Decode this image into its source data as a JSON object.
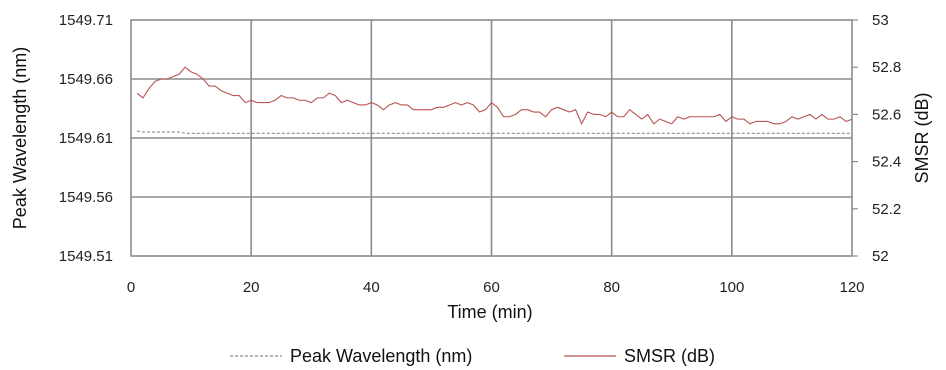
{
  "chart_data": {
    "type": "line",
    "title": "",
    "xlabel": "Time (min)",
    "ylabel_left": "Peak Wavelength (nm)",
    "ylabel_right": "SMSR (dB)",
    "xlim": [
      0,
      120
    ],
    "ylim_left": [
      1549.51,
      1549.71
    ],
    "ylim_right": [
      52,
      53
    ],
    "x_ticks": [
      "0",
      "20",
      "40",
      "60",
      "80",
      "100",
      "120"
    ],
    "y_left_ticks": [
      "1549.51",
      "1549.56",
      "1549.61",
      "1549.66",
      "1549.71"
    ],
    "y_right_ticks": [
      "52",
      "52.2",
      "52.4",
      "52.6",
      "52.8",
      "53"
    ],
    "grid": true,
    "legend_position": "bottom",
    "x": [
      1,
      2,
      3,
      4,
      5,
      6,
      7,
      8,
      9,
      10,
      11,
      12,
      13,
      14,
      15,
      16,
      17,
      18,
      19,
      20,
      21,
      22,
      23,
      24,
      25,
      26,
      27,
      28,
      29,
      30,
      31,
      32,
      33,
      34,
      35,
      36,
      37,
      38,
      39,
      40,
      41,
      42,
      43,
      44,
      45,
      46,
      47,
      48,
      49,
      50,
      51,
      52,
      53,
      54,
      55,
      56,
      57,
      58,
      59,
      60,
      61,
      62,
      63,
      64,
      65,
      66,
      67,
      68,
      69,
      70,
      71,
      72,
      73,
      74,
      75,
      76,
      77,
      78,
      79,
      80,
      81,
      82,
      83,
      84,
      85,
      86,
      87,
      88,
      89,
      90,
      91,
      92,
      93,
      94,
      95,
      96,
      97,
      98,
      99,
      100,
      101,
      102,
      103,
      104,
      105,
      106,
      107,
      108,
      109,
      110,
      111,
      112,
      113,
      114,
      115,
      116,
      117,
      118,
      119,
      120
    ],
    "series": [
      {
        "name": "Peak Wavelength (nm)",
        "axis": "left",
        "style": "dashed",
        "color": "#8a8a8a",
        "values": [
          1549.616,
          1549.615,
          1549.615,
          1549.615,
          1549.615,
          1549.615,
          1549.615,
          1549.615,
          1549.614,
          1549.614,
          1549.614,
          1549.614,
          1549.614,
          1549.614,
          1549.614,
          1549.614,
          1549.614,
          1549.614,
          1549.614,
          1549.614,
          1549.614,
          1549.614,
          1549.614,
          1549.614,
          1549.614,
          1549.614,
          1549.614,
          1549.614,
          1549.614,
          1549.614,
          1549.614,
          1549.614,
          1549.614,
          1549.614,
          1549.614,
          1549.614,
          1549.614,
          1549.614,
          1549.614,
          1549.614,
          1549.614,
          1549.614,
          1549.614,
          1549.614,
          1549.614,
          1549.614,
          1549.614,
          1549.614,
          1549.614,
          1549.614,
          1549.614,
          1549.614,
          1549.614,
          1549.614,
          1549.614,
          1549.614,
          1549.614,
          1549.614,
          1549.614,
          1549.614,
          1549.614,
          1549.614,
          1549.614,
          1549.614,
          1549.614,
          1549.614,
          1549.614,
          1549.614,
          1549.614,
          1549.614,
          1549.614,
          1549.614,
          1549.614,
          1549.614,
          1549.614,
          1549.614,
          1549.614,
          1549.614,
          1549.614,
          1549.614,
          1549.614,
          1549.614,
          1549.614,
          1549.614,
          1549.614,
          1549.614,
          1549.614,
          1549.614,
          1549.614,
          1549.614,
          1549.614,
          1549.614,
          1549.614,
          1549.614,
          1549.614,
          1549.614,
          1549.614,
          1549.614,
          1549.614,
          1549.614,
          1549.614,
          1549.614,
          1549.614,
          1549.614,
          1549.614,
          1549.614,
          1549.614,
          1549.614,
          1549.614,
          1549.614,
          1549.614,
          1549.614,
          1549.614,
          1549.614,
          1549.614,
          1549.614,
          1549.614,
          1549.614,
          1549.614,
          1549.614
        ]
      },
      {
        "name": "SMSR (dB)",
        "axis": "right",
        "style": "solid",
        "color": "#b85450",
        "values": [
          52.69,
          52.67,
          52.71,
          52.74,
          52.75,
          52.75,
          52.76,
          52.77,
          52.8,
          52.78,
          52.77,
          52.75,
          52.72,
          52.72,
          52.7,
          52.69,
          52.68,
          52.68,
          52.65,
          52.66,
          52.65,
          52.65,
          52.65,
          52.66,
          52.68,
          52.67,
          52.67,
          52.66,
          52.66,
          52.65,
          52.67,
          52.67,
          52.69,
          52.68,
          52.65,
          52.66,
          52.65,
          52.64,
          52.64,
          52.65,
          52.64,
          52.62,
          52.64,
          52.65,
          52.64,
          52.64,
          52.62,
          52.62,
          52.62,
          52.62,
          52.63,
          52.63,
          52.64,
          52.65,
          52.64,
          52.65,
          52.64,
          52.61,
          52.62,
          52.65,
          52.63,
          52.59,
          52.59,
          52.6,
          52.62,
          52.62,
          52.61,
          52.61,
          52.59,
          52.62,
          52.63,
          52.62,
          52.61,
          52.62,
          52.56,
          52.61,
          52.6,
          52.6,
          52.59,
          52.61,
          52.59,
          52.59,
          52.62,
          52.6,
          52.58,
          52.6,
          52.56,
          52.58,
          52.57,
          52.56,
          52.59,
          52.58,
          52.59,
          52.59,
          52.59,
          52.59,
          52.59,
          52.6,
          52.57,
          52.59,
          52.58,
          52.58,
          52.56,
          52.57,
          52.57,
          52.57,
          52.56,
          52.56,
          52.57,
          52.59,
          52.58,
          52.59,
          52.6,
          52.58,
          52.6,
          52.58,
          52.58,
          52.59,
          52.57,
          52.58
        ]
      }
    ]
  }
}
